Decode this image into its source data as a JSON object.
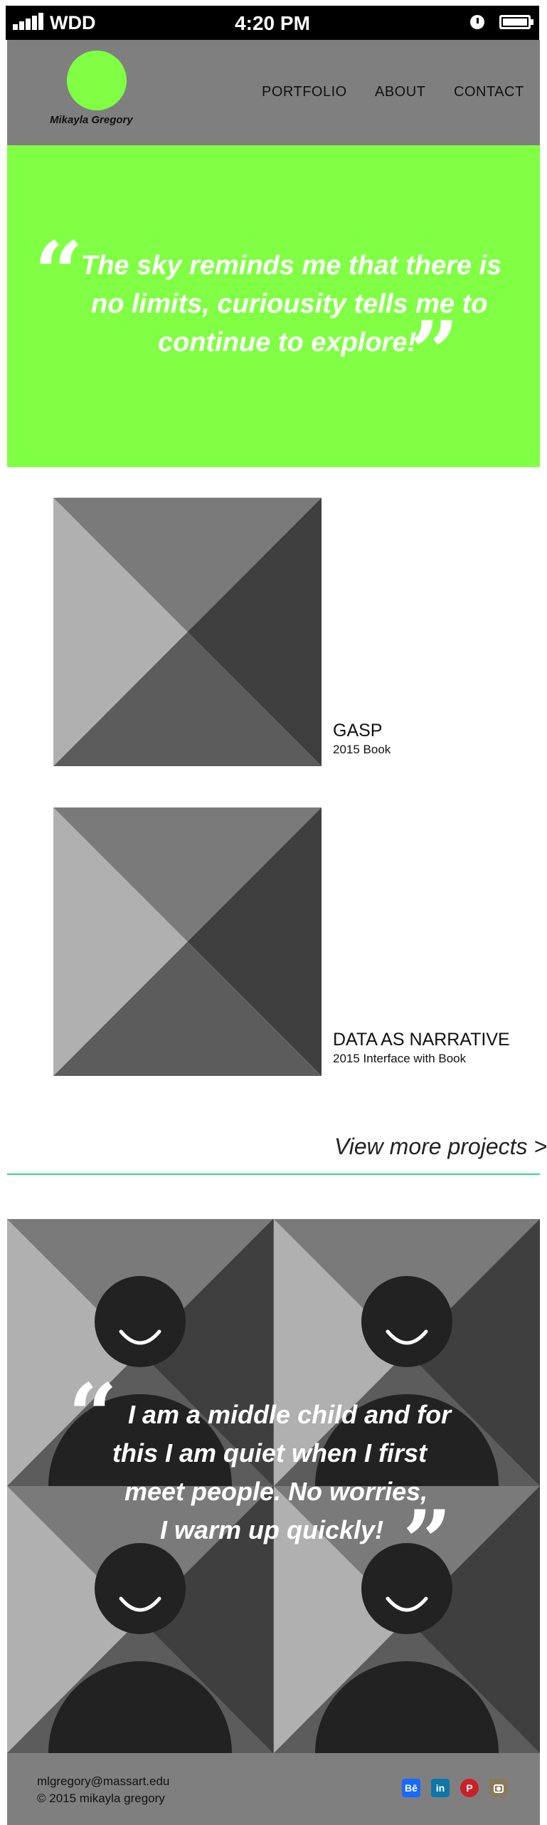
{
  "status_bar": {
    "carrier": "WDD",
    "time": "4:20 PM",
    "icons": [
      "signal-bars-icon",
      "alarm-clock-icon",
      "battery-icon"
    ]
  },
  "header": {
    "logo_name": "Mikayla Gregory",
    "nav": [
      "PORTFOLIO",
      "ABOUT",
      "CONTACT"
    ]
  },
  "hero": {
    "quote_lines": [
      "The sky reminds me that there is",
      "no limits, curiousity tells me to",
      "continue to explore!"
    ],
    "open_mark": "“",
    "close_mark": "”"
  },
  "projects": [
    {
      "title": "GASP",
      "subtitle": "2015 Book"
    },
    {
      "title": "DATA AS NARRATIVE",
      "subtitle": "2015 Interface with Book"
    }
  ],
  "view_more": "View more projects >",
  "about": {
    "quote_lines": [
      "I am a middle child and for",
      "this I am quiet when I first",
      "meet people. No worries,",
      "I warm up quickly!"
    ],
    "open_mark": "“",
    "close_mark": "”"
  },
  "footer": {
    "email": "mlgregory@massart.edu",
    "copyright": "© 2015 mikayla gregory",
    "social": [
      {
        "label": "Bē",
        "icon": "behance-icon",
        "color": "#1769ff"
      },
      {
        "label": "in",
        "icon": "linkedin-icon",
        "color": "#0e76a8"
      },
      {
        "label": "P",
        "icon": "pinterest-icon",
        "color": "#cb2027"
      },
      {
        "label": "",
        "icon": "instagram-icon",
        "color": "#8a7a5c"
      }
    ]
  },
  "colors": {
    "accent_green": "#80ff44",
    "header_gray": "#7f7f7f",
    "rule_teal": "#2fd987"
  }
}
